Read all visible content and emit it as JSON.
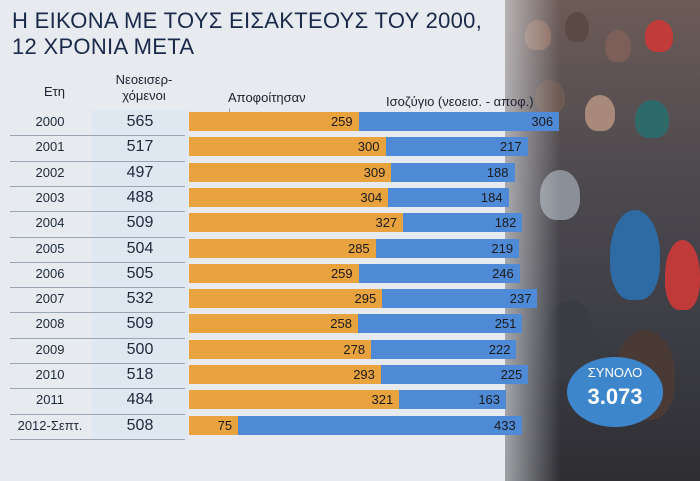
{
  "title": {
    "line1": "Η ΕΙΚΟΝΑ ΜΕ ΤΟΥΣ ΕΙΣΑΚΤΕΟΥΣ ΤΟΥ 2000,",
    "line2": "12 ΧΡΟΝΙΑ ΜΕΤΑ"
  },
  "headers": {
    "year": "Ετη",
    "new_line1": "Νεοεισερ-",
    "new_line2": "χόμενοι",
    "graduated": "Αποφοίτησαν",
    "balance": "Ισοζύγιο (νεοεισ. - αποφ.)"
  },
  "total": {
    "label": "ΣΥΝΟΛΟ",
    "value": "3.073"
  },
  "colors": {
    "graduated": "#e8a33f",
    "balance": "#4f8ad6",
    "new_box": "#dfe7f1"
  },
  "chart_data": {
    "type": "bar",
    "categories": [
      "2000",
      "2001",
      "2002",
      "2003",
      "2004",
      "2005",
      "2006",
      "2007",
      "2008",
      "2009",
      "2010",
      "2011",
      "2012-Σεπτ."
    ],
    "new_students": [
      565,
      517,
      497,
      488,
      509,
      504,
      505,
      532,
      509,
      500,
      518,
      484,
      508
    ],
    "series": [
      {
        "name": "Αποφοίτησαν",
        "values": [
          259,
          300,
          309,
          304,
          327,
          285,
          259,
          295,
          258,
          278,
          293,
          321,
          75
        ]
      },
      {
        "name": "Ισοζύγιο (νεοεισ. - αποφ.)",
        "values": [
          306,
          217,
          188,
          184,
          182,
          219,
          246,
          237,
          251,
          222,
          225,
          163,
          433
        ]
      }
    ],
    "stacked": true
  }
}
